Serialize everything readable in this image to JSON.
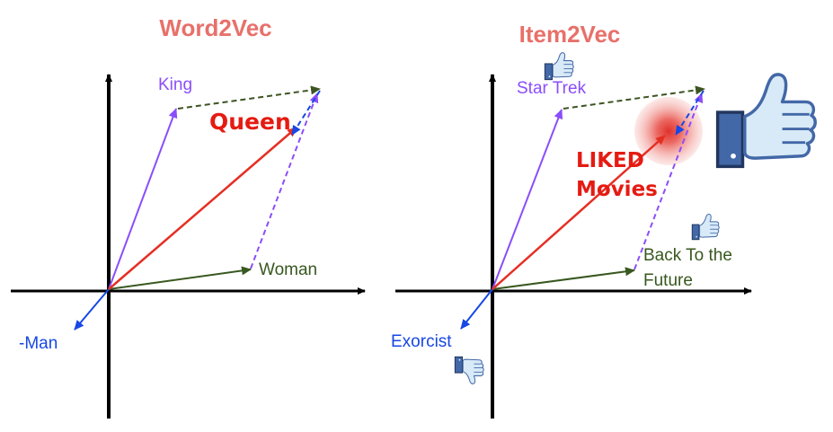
{
  "colors": {
    "axis": "#000000",
    "purple": "#8b4dfb",
    "red": "#e52e23",
    "green": "#38581f",
    "blue": "#1747e6",
    "dark_dashed": "#3d5422",
    "title": "#e8706a",
    "thumb_blue": "#4368a7",
    "thumb_light": "#d8eaf8"
  },
  "left_panel": {
    "title": "Word2Vec",
    "labels": {
      "king": "King",
      "queen": "Queen",
      "woman": "Woman",
      "man": "-Man"
    }
  },
  "right_panel": {
    "title": "Item2Vec",
    "labels": {
      "star_trek": "Star Trek",
      "liked_line1": "LIKED",
      "liked_line2": "Movies",
      "back_to_future_line1": "Back To the",
      "back_to_future_line2": "Future",
      "exorcist": "Exorcist"
    },
    "icons": [
      "thumbs-up-icon",
      "thumbs-up-icon",
      "thumbs-down-icon",
      "large-thumbs-up-icon"
    ]
  }
}
